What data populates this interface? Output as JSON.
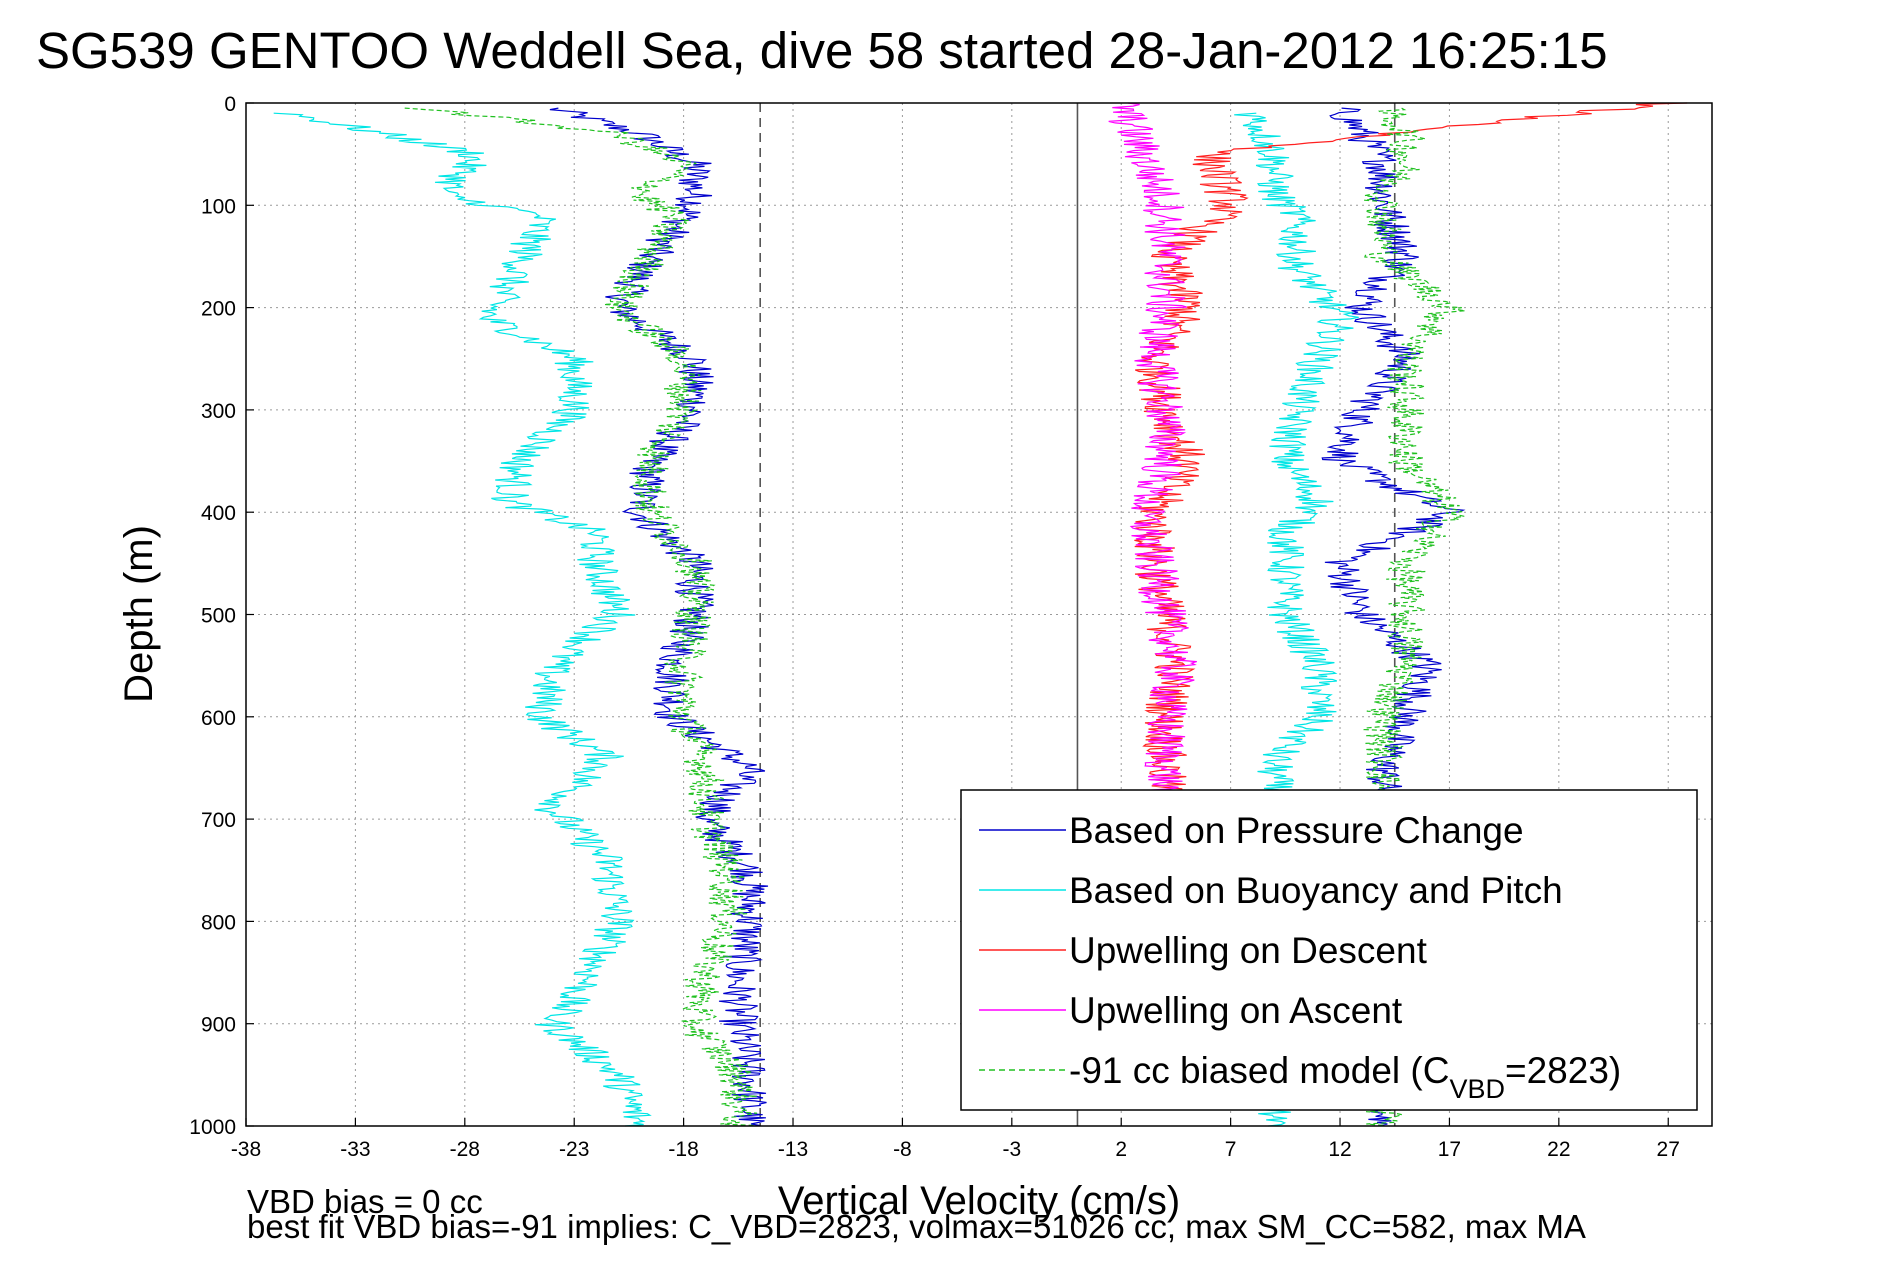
{
  "chart_data": {
    "type": "line",
    "title": "SG539 GENTOO Weddell Sea, dive 58 started 28-Jan-2012 16:25:15",
    "xlabel": "Vertical Velocity (cm/s)",
    "ylabel": "Depth (m)",
    "xlim": [
      -38,
      29
    ],
    "ylim": [
      1000,
      0
    ],
    "y_reversed": true,
    "xticks": [
      -38,
      -33,
      -28,
      -23,
      -18,
      -13,
      -8,
      -3,
      2,
      7,
      12,
      17,
      22,
      27
    ],
    "yticks": [
      0,
      100,
      200,
      300,
      400,
      500,
      600,
      700,
      800,
      900,
      1000
    ],
    "grid": true,
    "legend_position": "bottom-right",
    "reference_lines": [
      {
        "x": -14.5,
        "style": "dashed",
        "color": "#555555"
      },
      {
        "x": 0,
        "style": "solid",
        "color": "#555555"
      },
      {
        "x": 14.5,
        "style": "dashed",
        "color": "#555555"
      }
    ],
    "series": [
      {
        "name": "Based on Pressure Change",
        "color": "#0000cc",
        "depth": [
          5,
          30,
          60,
          100,
          150,
          200,
          250,
          300,
          350,
          400,
          450,
          500,
          550,
          600,
          650,
          700,
          750,
          800,
          850,
          900,
          950,
          1000
        ],
        "descent": [
          -24,
          -20,
          -17.5,
          -17.5,
          -19.5,
          -21,
          -17.5,
          -17.5,
          -19.5,
          -20,
          -17.5,
          -17.5,
          -18.5,
          -18.5,
          -15,
          -17,
          -15,
          -15,
          -15.5,
          -15.5,
          -15,
          -15
        ],
        "ascent": [
          12,
          13,
          14,
          14,
          15,
          13,
          15,
          13,
          12,
          17,
          12,
          13,
          16,
          15,
          14,
          14,
          14,
          14,
          14,
          14,
          14,
          14
        ]
      },
      {
        "name": "Based on Buoyancy and Pitch",
        "color": "#00e5e5",
        "depth": [
          10,
          50,
          90,
          110,
          160,
          210,
          250,
          300,
          350,
          390,
          420,
          450,
          500,
          550,
          600,
          640,
          690,
          740,
          800,
          860,
          900,
          950,
          1000
        ],
        "descent": [
          -36,
          -27.5,
          -29,
          -24.5,
          -25.5,
          -27,
          -23,
          -23,
          -25.5,
          -26,
          -22,
          -22,
          -21,
          -24,
          -24.5,
          -21.5,
          -24,
          -21.5,
          -21,
          -22.5,
          -24,
          -21,
          -20
        ],
        "ascent": [
          8,
          9,
          9,
          10,
          10,
          12,
          11,
          10,
          9.5,
          11,
          9.5,
          9.5,
          9.5,
          11,
          11,
          9,
          9,
          9,
          9,
          9,
          9,
          9,
          9
        ]
      },
      {
        "name": "Upwelling on Descent",
        "color": "#ff2020",
        "depth": [
          0,
          50,
          100,
          150,
          200,
          250,
          300,
          350,
          400,
          450,
          500,
          550,
          600,
          650,
          700
        ],
        "values": [
          27,
          6,
          7,
          4,
          5,
          3.5,
          4,
          5,
          3.5,
          3.5,
          4,
          4.5,
          4,
          4,
          4
        ]
      },
      {
        "name": "Upwelling on Ascent",
        "color": "#ff00ff",
        "depth": [
          0,
          50,
          100,
          150,
          200,
          250,
          300,
          350,
          400,
          450,
          500,
          550,
          600,
          650,
          700
        ],
        "values": [
          2,
          3,
          4,
          4,
          4,
          3.5,
          4,
          4,
          3,
          3.5,
          4,
          4.5,
          4,
          4,
          4
        ]
      },
      {
        "name": "-91 cc biased model (C_VBD=2823)",
        "color": "#20c020",
        "style": "dashed",
        "depth": [
          5,
          30,
          60,
          90,
          110,
          150,
          200,
          250,
          300,
          350,
          400,
          450,
          500,
          550,
          600,
          650,
          700,
          750,
          800,
          850,
          900,
          950,
          1000
        ],
        "descent": [
          -30,
          -21,
          -18,
          -20,
          -18.5,
          -19.5,
          -21,
          -18,
          -18,
          -19.5,
          -19.5,
          -17.5,
          -17.5,
          -18,
          -18,
          -17,
          -17,
          -16,
          -16,
          -17,
          -17.5,
          -15.5,
          -15.5
        ],
        "ascent": [
          14,
          15,
          15,
          14,
          14,
          14,
          17,
          15,
          15,
          15,
          17,
          15,
          15,
          15,
          14,
          14,
          14,
          14,
          14,
          14,
          14,
          14,
          14
        ]
      }
    ],
    "legend_entries": [
      {
        "label": "Based on Pressure Change",
        "color": "#0000cc",
        "dashed": false
      },
      {
        "label": "Based on Buoyancy and Pitch",
        "color": "#00e5e5",
        "dashed": false
      },
      {
        "label": "Upwelling on Descent",
        "color": "#ff2020",
        "dashed": false
      },
      {
        "label": "Upwelling on Ascent",
        "color": "#ff00ff",
        "dashed": false
      },
      {
        "label": "-91 cc biased model (C",
        "sub": "VBD",
        "tail": "=2823)",
        "color": "#20c020",
        "dashed": true
      }
    ],
    "footnotes": [
      "VBD bias = 0 cc",
      "best fit VBD bias=-91 implies: C_VBD=2823, volmax=51026 cc, max SM_CC=582, max MA"
    ]
  }
}
